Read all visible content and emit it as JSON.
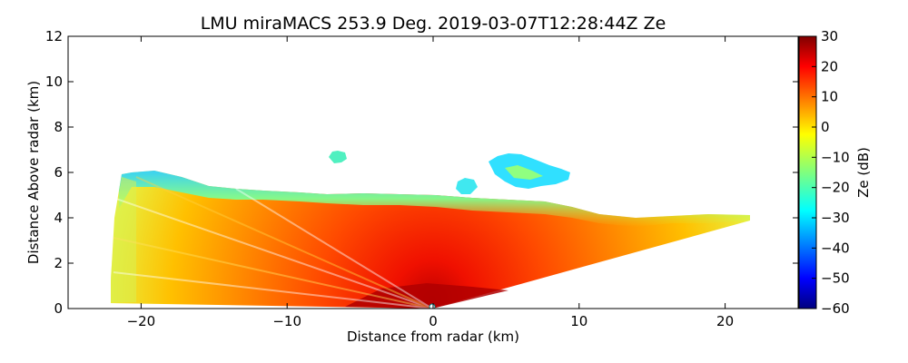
{
  "chart_data": {
    "type": "heatmap",
    "title": "LMU miraMACS 253.9 Deg. 2019-03-07T12:28:44Z  Ze",
    "xlabel": "Distance from radar (km)",
    "ylabel": "Distance Above radar  (km)",
    "xlim": [
      -25,
      25
    ],
    "ylim": [
      0,
      12
    ],
    "x_ticks": [
      -20,
      -10,
      0,
      10,
      20
    ],
    "x_tick_labels": [
      "−20",
      "−10",
      "0",
      "10",
      "20"
    ],
    "y_ticks": [
      0,
      2,
      4,
      6,
      8,
      10,
      12
    ],
    "y_tick_labels": [
      "0",
      "2",
      "4",
      "6",
      "8",
      "10",
      "12"
    ],
    "radar_position": [
      0,
      0
    ],
    "scan": {
      "left_edge_km": -22,
      "right_edge_km": 21.9,
      "right_top_height_km": 4.1,
      "left_top_height_km": 6.0,
      "main_cloud_top_km": 5.0
    },
    "cloud_patches": [
      {
        "x": -6.5,
        "y": 6.7,
        "ze": -25
      },
      {
        "x": 6.3,
        "y": 6.2,
        "ze": -24
      }
    ],
    "colorbar": {
      "label": "Ze (dB)",
      "range": [
        -60,
        30
      ],
      "ticks": [
        30,
        20,
        10,
        0,
        -10,
        -20,
        -30,
        -40,
        -50,
        -60
      ],
      "tick_labels": [
        "30",
        "20",
        "10",
        "0",
        "−10",
        "−20",
        "−30",
        "−40",
        "−50",
        "−60"
      ],
      "colormap": [
        "#00007f",
        "#0000ff",
        "#007fff",
        "#00ffff",
        "#7fff7f",
        "#ffff00",
        "#ff7f00",
        "#ff0000",
        "#7f0000"
      ]
    }
  }
}
